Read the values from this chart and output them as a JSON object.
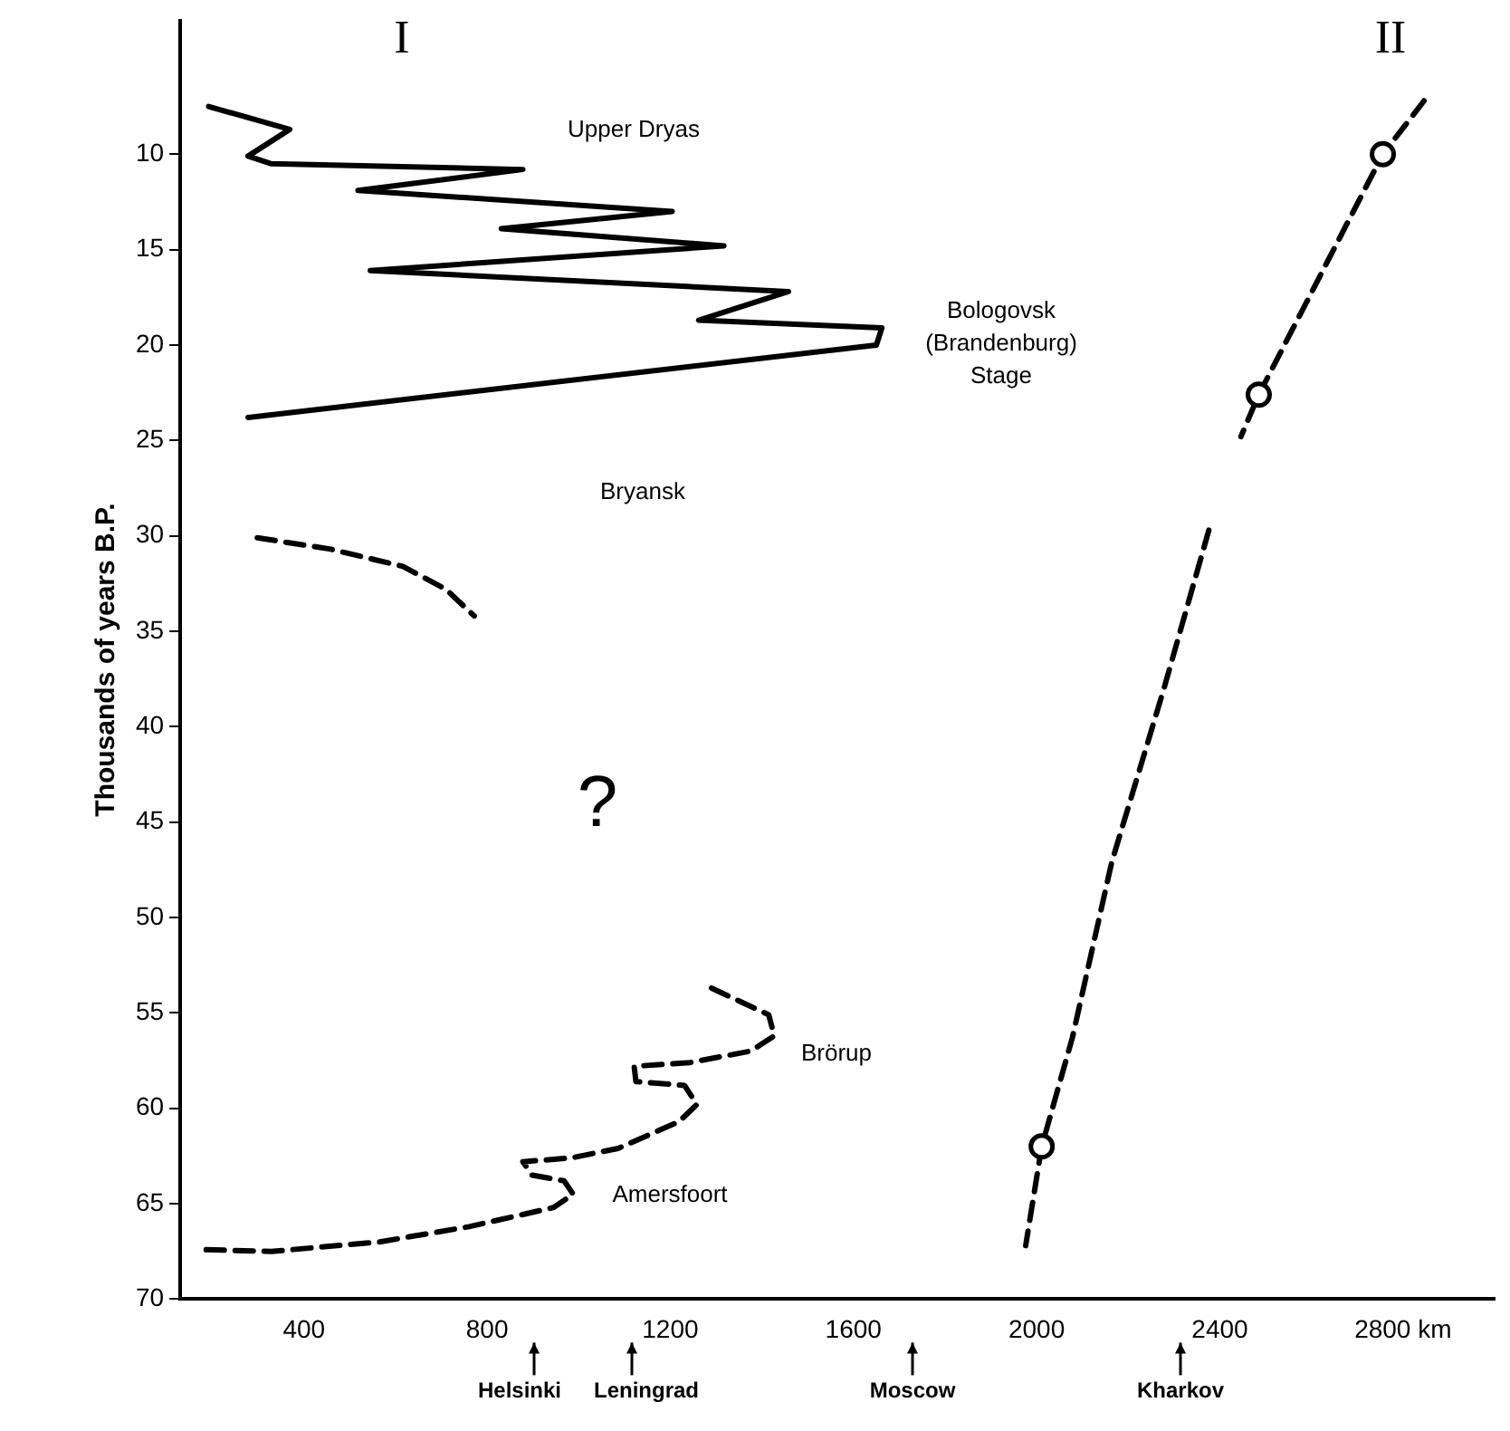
{
  "chart_data": {
    "type": "line",
    "ylabel": "Thousands of years B.P.",
    "xlim": [
      130,
      3000
    ],
    "xticks": [
      400,
      800,
      1200,
      1600,
      2000,
      2400,
      {
        "value": 2800,
        "label": "2800 km"
      }
    ],
    "ylim": [
      70,
      3
    ],
    "yticks": [
      10,
      15,
      20,
      25,
      30,
      35,
      40,
      45,
      50,
      55,
      60,
      65,
      70
    ],
    "grid": false,
    "legend": false,
    "series": [
      {
        "color": "#000000",
        "line_style": "solid",
        "marker": "none",
        "x": [
          192,
          369,
          278,
          329,
          878,
          518,
          1204,
          831,
          1317,
          545,
          1458,
          1262,
          1662,
          1650,
          278
        ],
        "values": [
          7.5,
          8.7,
          10.1,
          10.5,
          10.8,
          11.9,
          13.0,
          13.9,
          14.8,
          16.1,
          17.2,
          18.7,
          19.1,
          20.0,
          23.8
        ]
      },
      {
        "color": "#000000",
        "line_style": "dashed",
        "marker": "none",
        "x": [
          298,
          459,
          616,
          710,
          772
        ],
        "values": [
          30.1,
          30.7,
          31.6,
          32.8,
          34.2
        ]
      },
      {
        "color": "#000000",
        "line_style": "dashed",
        "marker": "none",
        "x": [
          1290,
          1415,
          1427,
          1376,
          1243,
          1121,
          1125,
          1231,
          1258,
          1219,
          1086,
          984,
          878,
          898,
          968,
          988,
          945,
          761,
          565,
          329,
          173
        ],
        "values": [
          53.7,
          55.1,
          56.2,
          57.0,
          57.6,
          57.8,
          58.6,
          58.8,
          59.8,
          60.7,
          62.1,
          62.6,
          62.8,
          63.5,
          63.8,
          64.5,
          65.2,
          66.2,
          67.0,
          67.5,
          67.4
        ]
      },
      {
        "color": "#000000",
        "line_style": "dashed",
        "marker": "none",
        "x": [
          2846,
          2756,
          2485,
          2446,
          2411,
          2376,
          2278,
          2164,
          2078,
          2011,
          1976
        ],
        "values": [
          7.2,
          10.0,
          22.6,
          24.8,
          null,
          29.7,
          38.0,
          47.1,
          56.3,
          62.0,
          67.2
        ]
      },
      {
        "type": "scatter",
        "color": "#000000",
        "marker": "circle",
        "x": [
          2756,
          2485,
          2011
        ],
        "values": [
          10.0,
          22.6,
          62.0
        ]
      }
    ],
    "annotations": [
      "I",
      "II",
      "Upper Dryas",
      "Bologovsk\n(Brandenburg)\nStage",
      "Bryansk",
      "?",
      "Brörup",
      "Amersfoort",
      "Helsinki",
      "Leningrad",
      "Moscow",
      "Kharkov"
    ]
  }
}
